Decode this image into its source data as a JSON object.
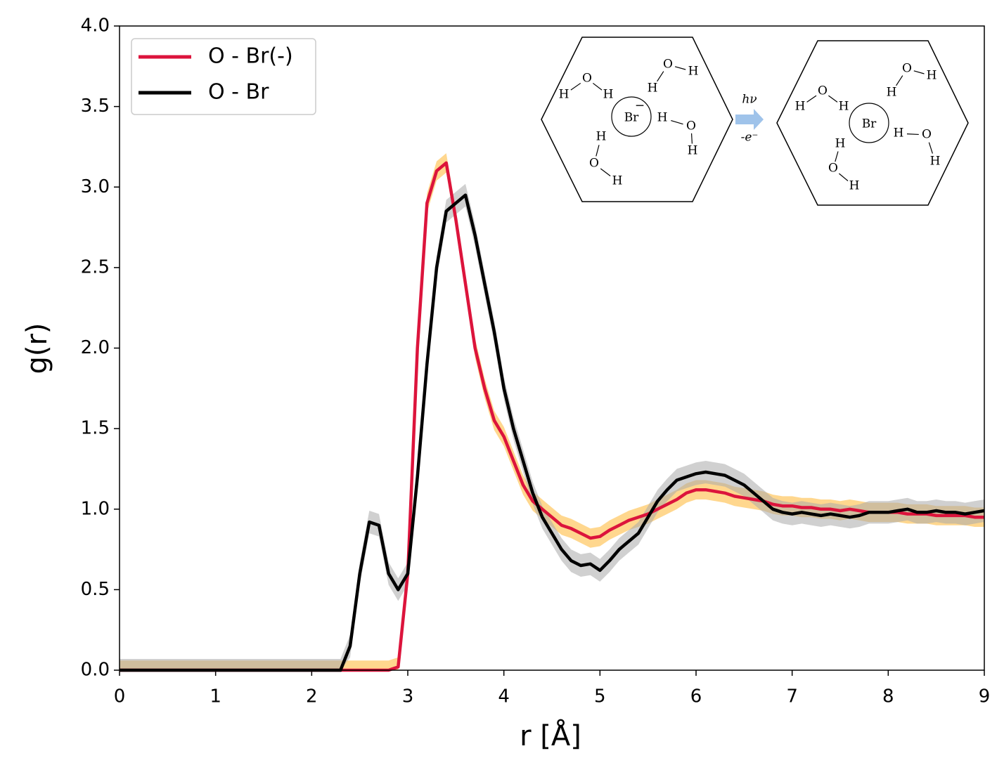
{
  "chart_data": {
    "type": "line",
    "xlabel": "r [Å]",
    "ylabel": "g(r)",
    "xlim": [
      0,
      9
    ],
    "ylim": [
      0,
      4
    ],
    "xticks": [
      0,
      1,
      2,
      3,
      4,
      5,
      6,
      7,
      8,
      9
    ],
    "yticks": [
      {
        "value": 0,
        "label": "0.0"
      },
      {
        "value": 0.5,
        "label": "0.5"
      },
      {
        "value": 1,
        "label": "1.0"
      },
      {
        "value": 1.5,
        "label": "1.5"
      },
      {
        "value": 2,
        "label": "2.0"
      },
      {
        "value": 2.5,
        "label": "2.5"
      },
      {
        "value": 3,
        "label": "3.0"
      },
      {
        "value": 3.5,
        "label": "3.5"
      },
      {
        "value": 4,
        "label": "4.0"
      }
    ],
    "legend": "upper-left",
    "x": [
      0,
      2.3,
      2.4,
      2.5,
      2.6,
      2.7,
      2.8,
      2.9,
      3.0,
      3.1,
      3.2,
      3.3,
      3.4,
      3.5,
      3.6,
      3.7,
      3.8,
      3.9,
      4.0,
      4.1,
      4.2,
      4.3,
      4.4,
      4.5,
      4.6,
      4.7,
      4.8,
      4.9,
      5.0,
      5.1,
      5.2,
      5.3,
      5.4,
      5.5,
      5.6,
      5.7,
      5.8,
      5.9,
      6.0,
      6.1,
      6.2,
      6.3,
      6.4,
      6.5,
      6.6,
      6.7,
      6.8,
      6.9,
      7.0,
      7.1,
      7.2,
      7.3,
      7.4,
      7.5,
      7.6,
      7.7,
      7.8,
      7.9,
      8.0,
      8.1,
      8.2,
      8.3,
      8.4,
      8.5,
      8.6,
      8.7,
      8.8,
      8.9,
      9.0
    ],
    "series": [
      {
        "name": "O - Br(-)",
        "color": "#dc143c",
        "band_color": "#ffb732",
        "error": 0.06,
        "values": [
          0,
          0,
          0,
          0,
          0,
          0,
          0,
          0.02,
          0.6,
          2.0,
          2.9,
          3.1,
          3.15,
          2.8,
          2.4,
          2.0,
          1.75,
          1.55,
          1.45,
          1.3,
          1.15,
          1.05,
          1.0,
          0.95,
          0.9,
          0.88,
          0.85,
          0.82,
          0.83,
          0.87,
          0.9,
          0.93,
          0.95,
          0.97,
          1.0,
          1.03,
          1.06,
          1.1,
          1.12,
          1.12,
          1.11,
          1.1,
          1.08,
          1.07,
          1.06,
          1.05,
          1.03,
          1.02,
          1.02,
          1.01,
          1.01,
          1.0,
          1.0,
          0.99,
          1.0,
          0.99,
          0.98,
          0.98,
          0.98,
          0.98,
          0.97,
          0.97,
          0.97,
          0.96,
          0.96,
          0.96,
          0.96,
          0.95,
          0.95
        ]
      },
      {
        "name": "O - Br",
        "color": "#000000",
        "band_color": "#aaaaaa",
        "error": 0.07,
        "values": [
          0,
          0,
          0.15,
          0.6,
          0.92,
          0.9,
          0.6,
          0.5,
          0.6,
          1.2,
          1.9,
          2.5,
          2.85,
          2.9,
          2.95,
          2.7,
          2.4,
          2.1,
          1.75,
          1.5,
          1.3,
          1.1,
          0.95,
          0.85,
          0.75,
          0.68,
          0.65,
          0.66,
          0.62,
          0.68,
          0.75,
          0.8,
          0.85,
          0.95,
          1.05,
          1.12,
          1.18,
          1.2,
          1.22,
          1.23,
          1.22,
          1.21,
          1.18,
          1.15,
          1.1,
          1.05,
          1.0,
          0.98,
          0.97,
          0.98,
          0.97,
          0.96,
          0.97,
          0.96,
          0.95,
          0.96,
          0.98,
          0.98,
          0.98,
          0.99,
          1.0,
          0.98,
          0.98,
          0.99,
          0.98,
          0.98,
          0.97,
          0.98,
          0.99
        ]
      }
    ],
    "inset": {
      "ion": "Br",
      "charge": "−",
      "arrow_top": "hν",
      "arrow_bottom": "-e⁻",
      "water": [
        "H",
        "O",
        "H"
      ]
    }
  }
}
